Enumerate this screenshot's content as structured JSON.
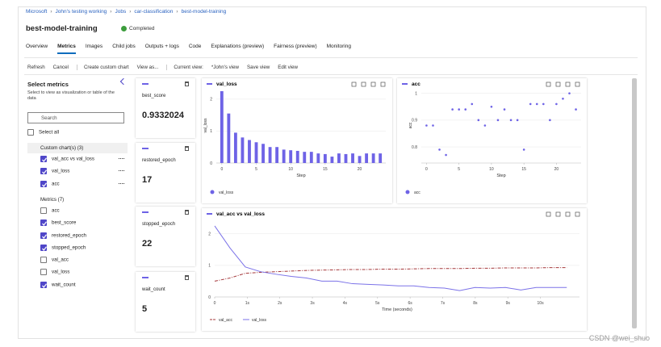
{
  "breadcrumb": [
    "Microsoft",
    "John's testing working",
    "Jobs",
    "car-classification",
    "best-model-training"
  ],
  "header": {
    "title": "best-model-training",
    "status": "Completed"
  },
  "tabs": [
    "Overview",
    "Metrics",
    "Images",
    "Child jobs",
    "Outputs + logs",
    "Code",
    "Explanations (preview)",
    "Fairness (preview)",
    "Monitoring"
  ],
  "active_tab": 1,
  "toolbar": [
    "Refresh",
    "Cancel",
    "Create custom chart",
    "View as...",
    "Current view:",
    "*John's view",
    "Save view",
    "Edit view"
  ],
  "sidebar": {
    "title": "Select metrics",
    "hint": "Select to view as visualization or table of the data",
    "search": "Search",
    "select_all": "Select all",
    "groups": [
      {
        "label": "Custom chart(s) (3)",
        "items": [
          {
            "label": "val_acc vs val_loss",
            "checked": true
          },
          {
            "label": "val_loss",
            "checked": true
          },
          {
            "label": "acc",
            "checked": true
          }
        ]
      },
      {
        "label": "Metrics (7)",
        "items": [
          {
            "label": "acc",
            "checked": false
          },
          {
            "label": "best_score",
            "checked": true
          },
          {
            "label": "restored_epoch",
            "checked": true
          },
          {
            "label": "stopped_epoch",
            "checked": true
          },
          {
            "label": "val_acc",
            "checked": false
          },
          {
            "label": "val_loss",
            "checked": false
          },
          {
            "label": "wait_count",
            "checked": true
          }
        ]
      }
    ]
  },
  "cards": [
    {
      "name": "best_score",
      "value": 0.9332024
    },
    {
      "name": "restored_epoch",
      "value": 17
    },
    {
      "name": "stopped_epoch",
      "value": 22
    },
    {
      "name": "wait_count",
      "value": 5
    }
  ],
  "charts": [
    {
      "type": "bar",
      "title": "val_loss",
      "x_label": "Step",
      "y_label": "val_loss",
      "x": [
        0,
        1,
        2,
        3,
        4,
        5,
        6,
        7,
        8,
        9,
        10,
        11,
        12,
        13,
        14,
        15,
        16,
        17,
        18,
        19,
        20,
        21,
        22,
        23
      ],
      "series": [
        {
          "name": "val_loss",
          "color": "#6e63e6",
          "values": [
            2.25,
            1.55,
            0.95,
            0.8,
            0.72,
            0.65,
            0.6,
            0.5,
            0.5,
            0.42,
            0.4,
            0.38,
            0.35,
            0.35,
            0.3,
            0.28,
            0.2,
            0.3,
            0.28,
            0.3,
            0.22,
            0.3,
            0.3,
            0.3
          ]
        }
      ],
      "xlim": [
        -0.8,
        23.8
      ],
      "xticks": [
        0,
        5,
        10,
        15,
        20
      ],
      "ylim": [
        0,
        2.35
      ],
      "yticks": [
        0,
        1,
        2
      ]
    },
    {
      "type": "scatter",
      "title": "acc",
      "x_label": "Step",
      "y_label": "acc",
      "x": [
        0,
        1,
        2,
        3,
        4,
        5,
        6,
        7,
        8,
        9,
        10,
        11,
        12,
        13,
        14,
        15,
        16,
        17,
        18,
        19,
        20,
        21,
        22,
        23
      ],
      "series": [
        {
          "name": "acc",
          "color": "#6e63e6",
          "values": [
            0.88,
            0.88,
            0.79,
            0.77,
            0.94,
            0.94,
            0.94,
            0.96,
            0.9,
            0.88,
            0.95,
            0.9,
            0.94,
            0.9,
            0.9,
            0.79,
            0.96,
            0.96,
            0.96,
            0.9,
            0.96,
            0.98,
            1,
            0.94
          ]
        }
      ],
      "xlim": [
        -0.8,
        23.8
      ],
      "xticks": [
        0,
        5,
        10,
        15,
        20
      ],
      "ylim": [
        0.74,
        1.02
      ],
      "yticks": [
        0.8,
        0.9,
        1
      ]
    },
    {
      "type": "line",
      "title": "val_acc vs val_loss",
      "x_label": "Time (seconds)",
      "x": [
        0,
        0.47,
        0.94,
        1.41,
        1.88,
        2.35,
        2.82,
        3.29,
        3.76,
        4.23,
        4.7,
        5.17,
        5.64,
        6.11,
        6.58,
        7.05,
        7.52,
        7.99,
        8.46,
        8.93,
        9.4,
        9.87,
        10.34,
        10.81
      ],
      "series": [
        {
          "name": "val_acc",
          "color": "#a4373a",
          "dashed": true,
          "values": [
            0.5,
            0.6,
            0.75,
            0.78,
            0.8,
            0.82,
            0.84,
            0.85,
            0.86,
            0.87,
            0.87,
            0.88,
            0.88,
            0.89,
            0.9,
            0.9,
            0.9,
            0.91,
            0.91,
            0.92,
            0.92,
            0.92,
            0.93,
            0.93
          ]
        },
        {
          "name": "val_loss",
          "color": "#7b72e8",
          "dashed": false,
          "values": [
            2.25,
            1.55,
            0.95,
            0.8,
            0.72,
            0.65,
            0.6,
            0.5,
            0.5,
            0.42,
            0.4,
            0.38,
            0.35,
            0.35,
            0.3,
            0.28,
            0.2,
            0.3,
            0.28,
            0.3,
            0.22,
            0.3,
            0.3,
            0.3
          ]
        }
      ],
      "xlim": [
        0,
        11.2
      ],
      "xticks": [
        0,
        {
          "value": 1,
          "label": "1s"
        },
        {
          "value": 2,
          "label": "2s"
        },
        {
          "value": 3,
          "label": "3s"
        },
        {
          "value": 4,
          "label": "4s"
        },
        {
          "value": 5,
          "label": "5s"
        },
        {
          "value": 6,
          "label": "6s"
        },
        {
          "value": 7,
          "label": "7s"
        },
        {
          "value": 8,
          "label": "8s"
        },
        {
          "value": 9,
          "label": "9s"
        },
        {
          "value": 10,
          "label": "10s"
        }
      ],
      "ylim": [
        0,
        2.35
      ],
      "yticks": [
        0,
        1,
        2
      ]
    }
  ],
  "watermark": "CSDN @wei_shuo"
}
